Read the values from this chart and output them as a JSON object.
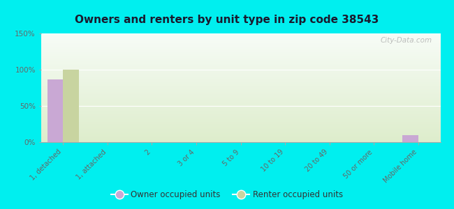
{
  "title": "Owners and renters by unit type in zip code 38543",
  "categories": [
    "1, detached",
    "1, attached",
    "2",
    "3 or 4",
    "5 to 9",
    "10 to 19",
    "20 to 49",
    "50 or more",
    "Mobile home"
  ],
  "owner_values": [
    87,
    0,
    0,
    0,
    0,
    0,
    0,
    0,
    10
  ],
  "renter_values": [
    100,
    0,
    0,
    0,
    0,
    0,
    0,
    0,
    0
  ],
  "owner_color": "#c9a8d4",
  "renter_color": "#c8d4a0",
  "ylim": [
    0,
    150
  ],
  "yticks": [
    0,
    50,
    100,
    150
  ],
  "ytick_labels": [
    "0%",
    "50%",
    "100%",
    "150%"
  ],
  "outer_background": "#00efef",
  "bar_width": 0.35,
  "watermark": "City-Data.com",
  "legend_owner": "Owner occupied units",
  "legend_renter": "Renter occupied units",
  "title_color": "#1a1a2e",
  "tick_color": "#666666",
  "grid_color": "#cccccc"
}
